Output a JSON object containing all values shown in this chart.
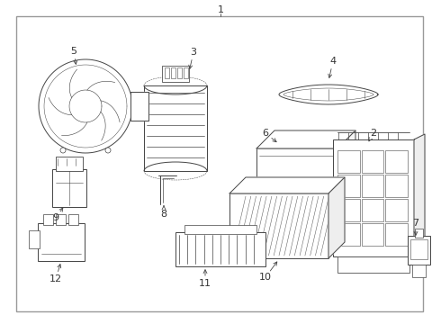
{
  "bg_color": "#ffffff",
  "border_color": "#aaaaaa",
  "line_color": "#444444",
  "label_color": "#333333",
  "fig_width": 4.9,
  "fig_height": 3.6,
  "dpi": 100
}
